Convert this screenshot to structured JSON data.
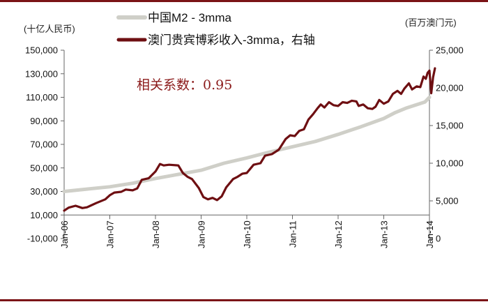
{
  "chart_data": {
    "type": "line",
    "left_unit": "(十亿人民币)",
    "right_unit": "(百万澳门元)",
    "annotation": "相关系数：0.95",
    "left_axis": {
      "min": -10000,
      "max": 150000,
      "step": 20000,
      "ticks": [
        "-10,000",
        "10,000",
        "30,000",
        "50,000",
        "70,000",
        "90,000",
        "110,000",
        "130,000",
        "150,000"
      ]
    },
    "right_axis": {
      "min": 0,
      "max": 25000,
      "step": 5000,
      "ticks": [
        "0",
        "5,000",
        "10,000",
        "15,000",
        "20,000",
        "25,000"
      ]
    },
    "x_ticks": [
      "Jan-06",
      "Jan-07",
      "Jan-08",
      "Jan-09",
      "Jan-10",
      "Jan-11",
      "Jan-12",
      "Jan-13",
      "Jan-14"
    ],
    "x_range": [
      2006.0,
      2014.0
    ],
    "series": [
      {
        "name": "中国M2 - 3mma",
        "axis": "left",
        "color": "#cfcfc8",
        "points": [
          [
            2006.0,
            30000
          ],
          [
            2006.5,
            32000
          ],
          [
            2007.0,
            34000
          ],
          [
            2007.5,
            37000
          ],
          [
            2008.0,
            41000
          ],
          [
            2008.5,
            44500
          ],
          [
            2009.0,
            48000
          ],
          [
            2009.5,
            54000
          ],
          [
            2010.0,
            58500
          ],
          [
            2010.5,
            63500
          ],
          [
            2011.0,
            68000
          ],
          [
            2011.5,
            72500
          ],
          [
            2012.0,
            78500
          ],
          [
            2012.5,
            85000
          ],
          [
            2013.0,
            92000
          ],
          [
            2013.25,
            97000
          ],
          [
            2013.5,
            101000
          ],
          [
            2013.9,
            106000
          ],
          [
            2014.0,
            110000
          ]
        ]
      },
      {
        "name": "澳门贵宾博彩收入-3mma，右轴",
        "axis": "right",
        "color": "#6e0f12",
        "points": [
          [
            2006.0,
            3700
          ],
          [
            2006.1,
            4100
          ],
          [
            2006.25,
            4350
          ],
          [
            2006.4,
            4050
          ],
          [
            2006.5,
            4150
          ],
          [
            2006.7,
            4700
          ],
          [
            2006.9,
            5200
          ],
          [
            2007.0,
            5750
          ],
          [
            2007.1,
            6100
          ],
          [
            2007.25,
            6200
          ],
          [
            2007.35,
            6500
          ],
          [
            2007.5,
            6400
          ],
          [
            2007.6,
            6650
          ],
          [
            2007.7,
            7800
          ],
          [
            2007.85,
            8000
          ],
          [
            2008.0,
            8900
          ],
          [
            2008.1,
            9900
          ],
          [
            2008.18,
            9700
          ],
          [
            2008.3,
            9800
          ],
          [
            2008.5,
            9700
          ],
          [
            2008.6,
            8700
          ],
          [
            2008.7,
            8200
          ],
          [
            2008.8,
            7900
          ],
          [
            2008.95,
            6700
          ],
          [
            2009.05,
            5500
          ],
          [
            2009.15,
            5200
          ],
          [
            2009.25,
            5400
          ],
          [
            2009.35,
            5100
          ],
          [
            2009.45,
            5600
          ],
          [
            2009.55,
            6800
          ],
          [
            2009.7,
            7900
          ],
          [
            2009.8,
            8200
          ],
          [
            2009.9,
            8600
          ],
          [
            2010.0,
            8700
          ],
          [
            2010.15,
            9800
          ],
          [
            2010.3,
            10000
          ],
          [
            2010.4,
            11000
          ],
          [
            2010.55,
            11200
          ],
          [
            2010.7,
            11800
          ],
          [
            2010.85,
            13200
          ],
          [
            2010.95,
            13700
          ],
          [
            2011.05,
            13600
          ],
          [
            2011.15,
            14300
          ],
          [
            2011.25,
            14500
          ],
          [
            2011.35,
            15800
          ],
          [
            2011.45,
            16500
          ],
          [
            2011.55,
            17300
          ],
          [
            2011.62,
            17800
          ],
          [
            2011.7,
            17400
          ],
          [
            2011.8,
            18100
          ],
          [
            2011.9,
            17700
          ],
          [
            2012.0,
            17600
          ],
          [
            2012.1,
            18100
          ],
          [
            2012.2,
            18000
          ],
          [
            2012.3,
            18300
          ],
          [
            2012.4,
            18200
          ],
          [
            2012.45,
            17600
          ],
          [
            2012.55,
            17800
          ],
          [
            2012.65,
            17300
          ],
          [
            2012.75,
            17200
          ],
          [
            2012.82,
            17500
          ],
          [
            2012.9,
            18400
          ],
          [
            2013.0,
            17900
          ],
          [
            2013.1,
            18200
          ],
          [
            2013.2,
            19200
          ],
          [
            2013.3,
            19600
          ],
          [
            2013.38,
            19200
          ],
          [
            2013.45,
            19900
          ],
          [
            2013.55,
            20600
          ],
          [
            2013.62,
            19800
          ],
          [
            2013.72,
            20200
          ],
          [
            2013.8,
            20100
          ],
          [
            2013.87,
            21500
          ],
          [
            2013.92,
            21200
          ],
          [
            2013.96,
            22000
          ],
          [
            2014.0,
            22300
          ],
          [
            2014.04,
            19300
          ],
          [
            2014.08,
            21400
          ],
          [
            2014.12,
            22600
          ]
        ]
      }
    ]
  }
}
